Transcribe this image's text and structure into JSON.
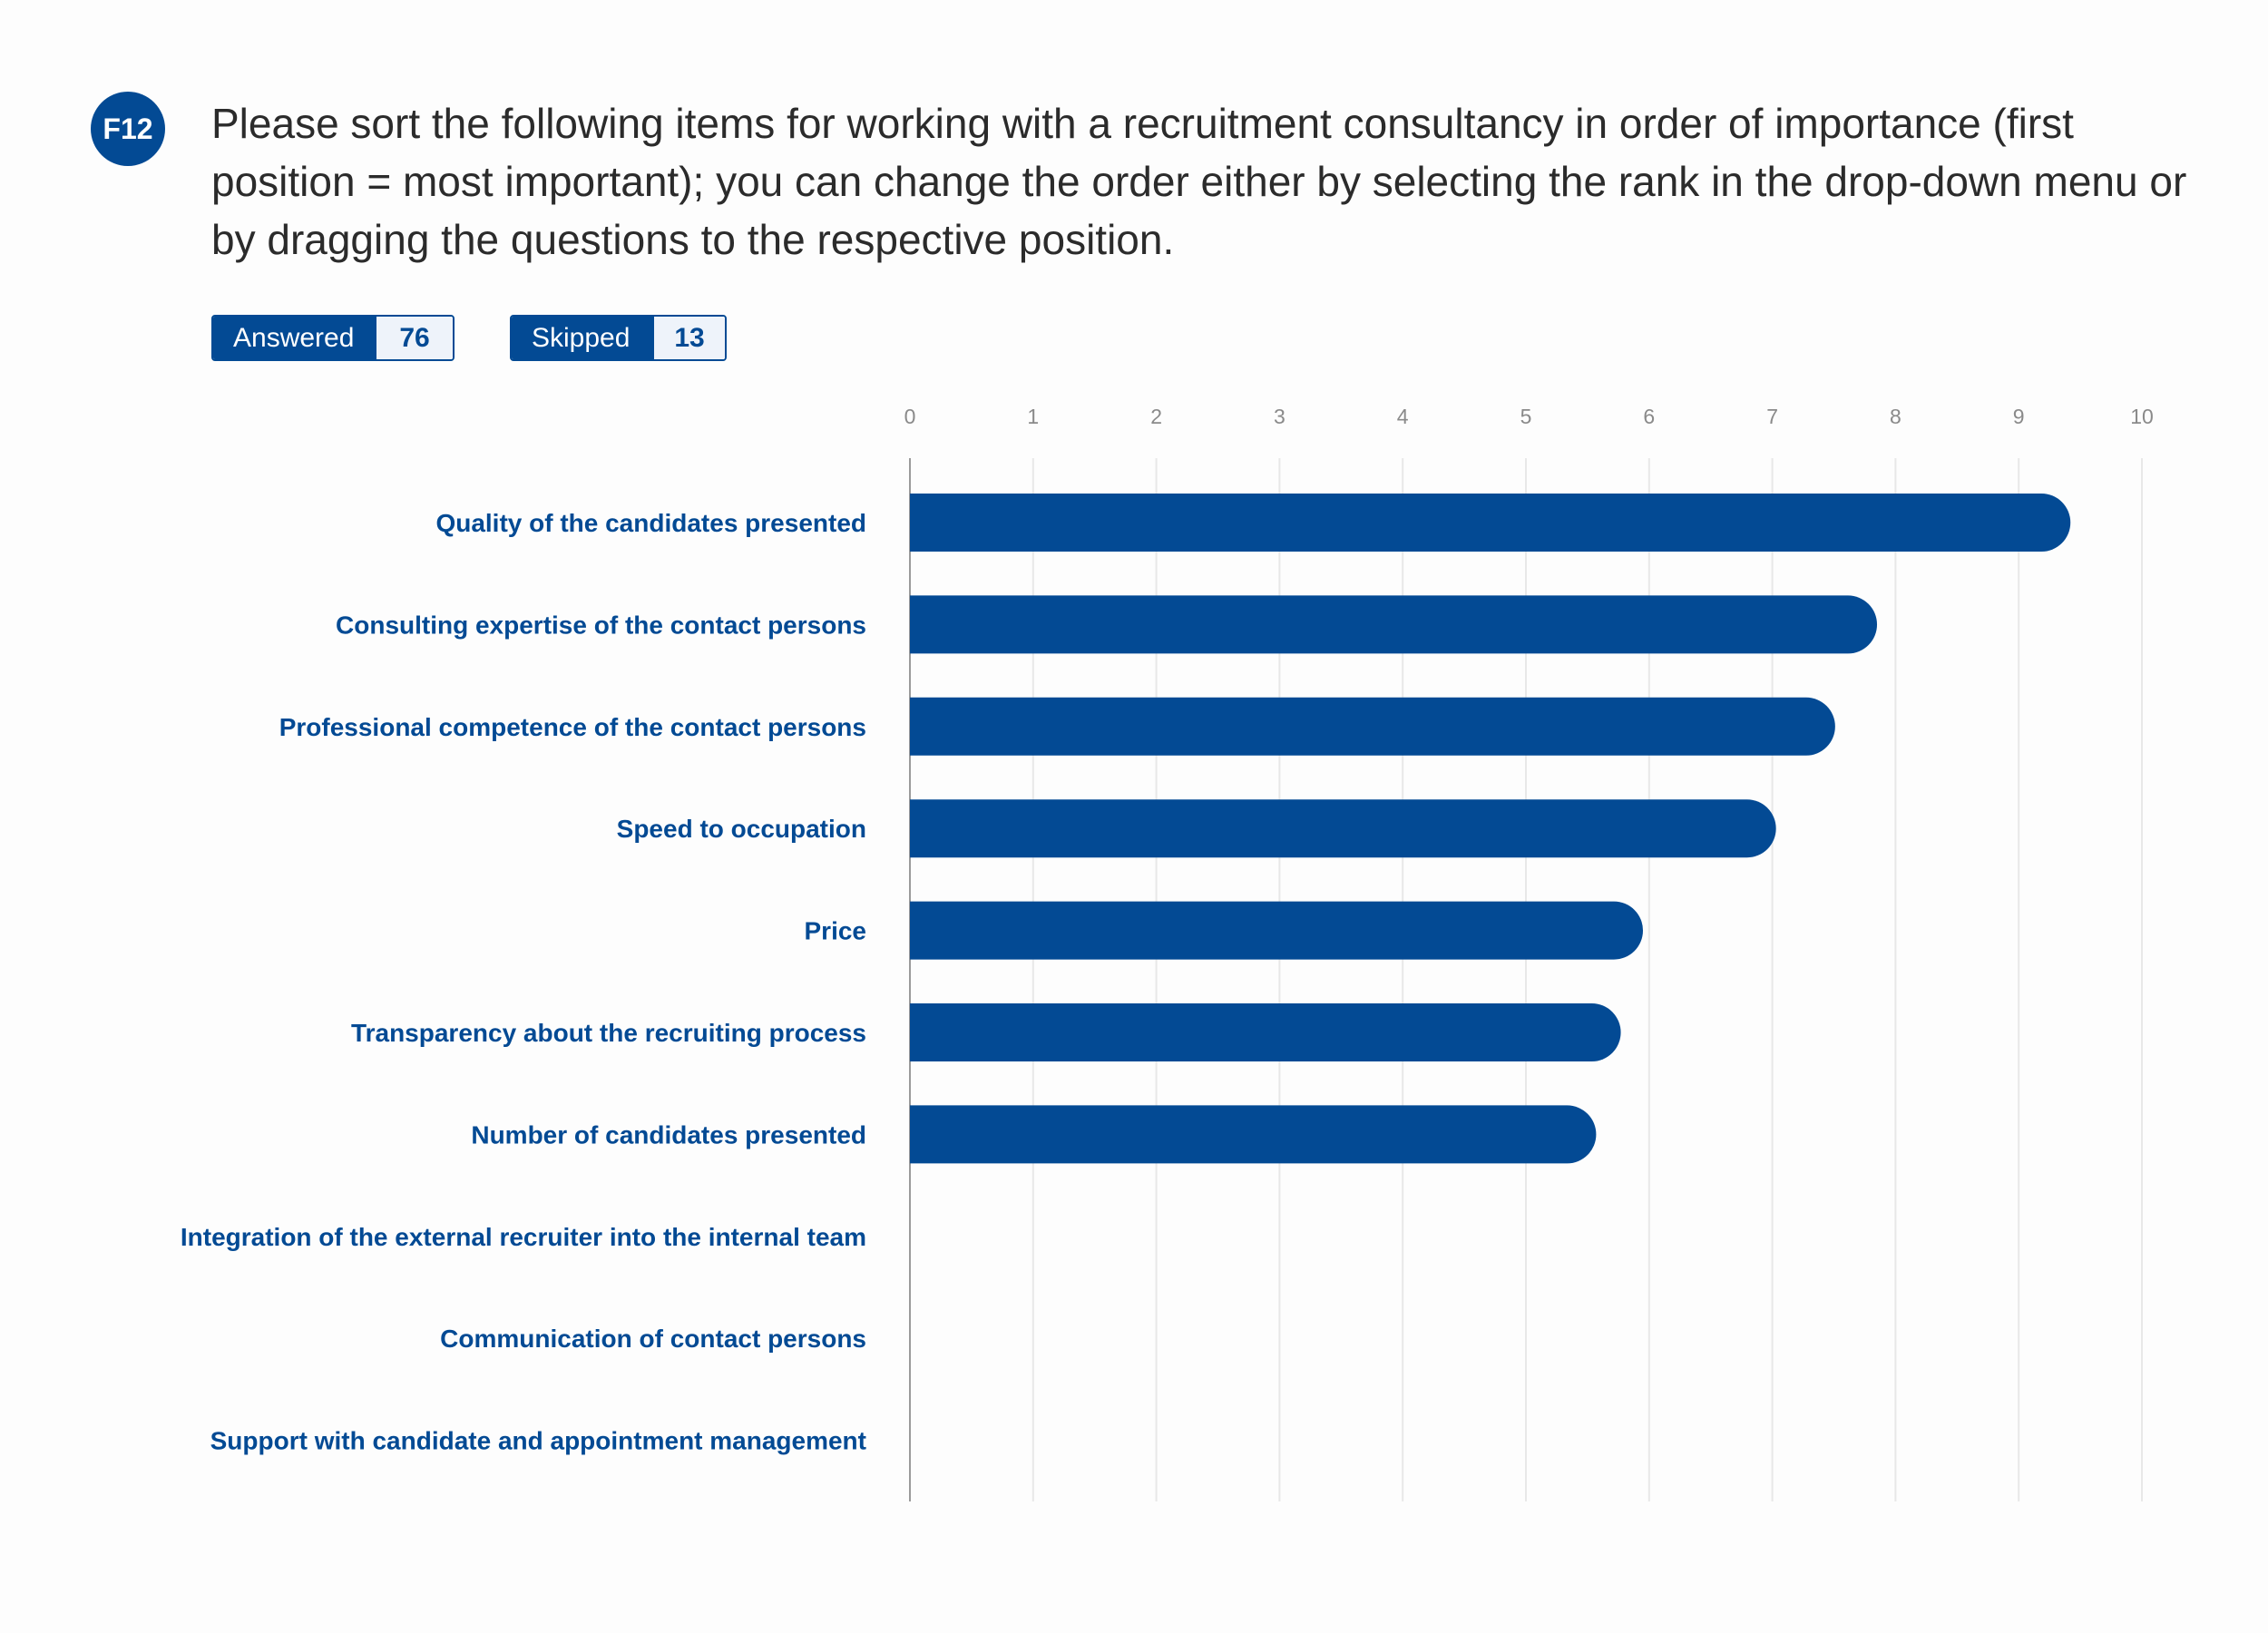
{
  "question": {
    "badge": "F12",
    "text": "Please sort the following items for working with a recruitment consultancy in order of importance (first position = most important); you can change the order either by selecting the rank in the drop-down menu or by dragging the questions to the respective position."
  },
  "stats": {
    "answered_label": "Answered",
    "answered_value": "76",
    "skipped_label": "Skipped",
    "skipped_value": "13"
  },
  "colors": {
    "accent": "#034a94",
    "grid": "#e8e8e8",
    "axis": "#9a9a9a"
  },
  "chart_data": {
    "type": "bar",
    "orientation": "horizontal",
    "categories": [
      "Quality of the candidates presented",
      "Consulting expertise of the contact persons",
      "Professional competence of the contact persons",
      "Speed to occupation",
      "Price",
      "Transparency about the recruiting process",
      "Number of candidates presented",
      "Integration of the external recruiter into the internal team",
      "Communication of contact persons",
      "Support with candidate and appointment management"
    ],
    "values": [
      9.42,
      7.85,
      7.51,
      7.03,
      5.95,
      5.77,
      5.57,
      0,
      0,
      0
    ],
    "xlim": [
      0,
      10
    ],
    "xticks": [
      "0",
      "1",
      "2",
      "3",
      "4",
      "5",
      "6",
      "7",
      "8",
      "9",
      "10"
    ],
    "grid": true,
    "title": "",
    "xlabel": "",
    "ylabel": ""
  }
}
